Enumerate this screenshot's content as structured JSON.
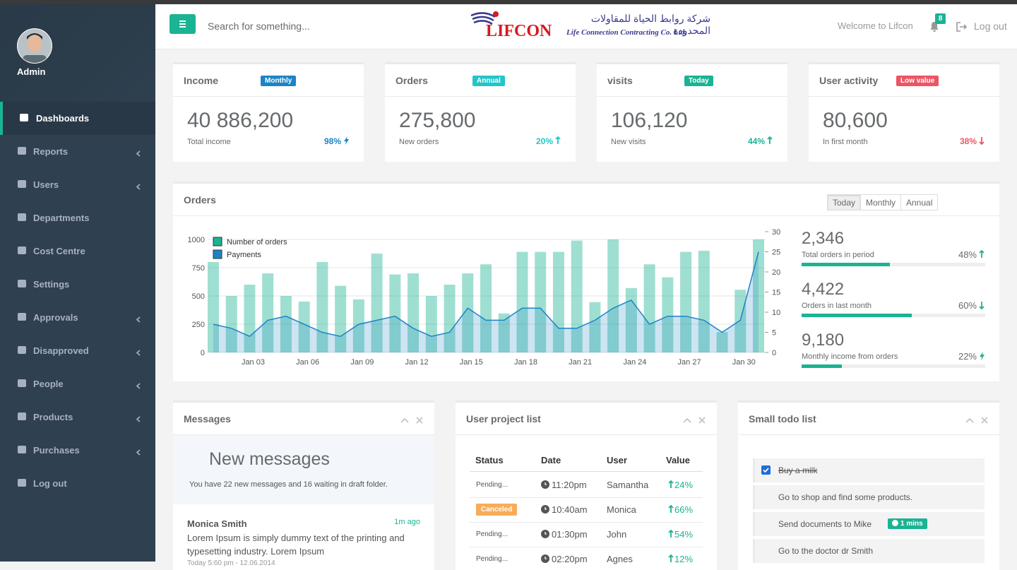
{
  "sidebar": {
    "user": "Admin",
    "menu": [
      {
        "label": "Dashboards",
        "active": true
      },
      {
        "label": "Reports",
        "submenu": true
      },
      {
        "label": "Users",
        "submenu": true
      },
      {
        "label": "Departments"
      },
      {
        "label": "Cost Centre"
      },
      {
        "label": "Settings"
      },
      {
        "label": "Approvals",
        "submenu": true
      },
      {
        "label": "Disapproved",
        "submenu": true
      },
      {
        "label": "People",
        "submenu": true
      },
      {
        "label": "Products",
        "submenu": true
      },
      {
        "label": "Purchases",
        "submenu": true
      },
      {
        "label": "Log out"
      }
    ]
  },
  "header": {
    "search_placeholder": "Search for something...",
    "logo": {
      "name": "LIFCON",
      "arabic": "شركة روابط الحياة للمقاولات المحدودة",
      "tagline": "Life Connection Contracting Co. Ltd."
    },
    "welcome": "Welcome to Lifcon",
    "notifications": 8,
    "logout": "Log out"
  },
  "stats": [
    {
      "title": "Income",
      "badge": "Monthly",
      "value": "40 886,200",
      "caption": "Total income",
      "change": "98%",
      "trend": "bolt",
      "color": "#1c84c6"
    },
    {
      "title": "Orders",
      "badge": "Annual",
      "value": "275,800",
      "caption": "New orders",
      "change": "20%",
      "trend": "up",
      "color": "#23c6c8"
    },
    {
      "title": "visits",
      "badge": "Today",
      "value": "106,120",
      "caption": "New visits",
      "change": "44%",
      "trend": "up",
      "color": "#1ab394"
    },
    {
      "title": "User activity",
      "badge": "Low value",
      "value": "80,600",
      "caption": "In first month",
      "change": "38%",
      "trend": "down",
      "color": "#ed5565"
    }
  ],
  "orders": {
    "title": "Orders",
    "periods": [
      "Today",
      "Monthly",
      "Annual"
    ],
    "active_period": 0,
    "summary": [
      {
        "value": "2,346",
        "caption": "Total orders in period",
        "percent": {
          "value": 48,
          "label": "48%"
        },
        "trend": "up"
      },
      {
        "value": "4,422",
        "caption": "Orders in last month",
        "percent": {
          "value": 60,
          "label": "60%"
        },
        "trend": "down"
      },
      {
        "value": "9,180",
        "caption": "Monthly income from orders",
        "percent": {
          "value": 22,
          "label": "22%"
        },
        "trend": "bolt"
      }
    ]
  },
  "chart_data": {
    "type": "bar",
    "categories": [
      null,
      null,
      "Jan 03",
      null,
      null,
      "Jan 06",
      null,
      null,
      "Jan 09",
      null,
      null,
      "Jan 12",
      null,
      null,
      "Jan 15",
      null,
      null,
      "Jan 18",
      null,
      null,
      "Jan 21",
      null,
      null,
      "Jan 24",
      null,
      null,
      "Jan 27",
      null,
      null,
      "Jan 30",
      null
    ],
    "series": [
      {
        "name": "Number of orders",
        "color": "#1ab394",
        "type": "bar",
        "values": [
          800,
          500,
          600,
          700,
          500,
          450,
          800,
          590,
          470,
          875,
          690,
          700,
          500,
          600,
          700,
          780,
          345,
          890,
          890,
          890,
          990,
          445,
          1000,
          570,
          780,
          665,
          890,
          900,
          180,
          555,
          1000
        ]
      },
      {
        "name": "Payments",
        "color": "#1c84c6",
        "type": "line",
        "axis": "y2",
        "values": [
          7,
          6,
          4,
          8,
          9,
          7,
          5,
          4,
          7,
          8,
          9,
          6,
          4,
          5,
          11,
          8,
          8,
          11,
          11,
          6,
          6,
          8,
          11,
          13,
          7,
          9,
          9,
          8,
          5,
          8,
          25
        ]
      }
    ],
    "ylim": [
      0,
      1000
    ],
    "yticks": [
      0,
      250,
      500,
      750,
      1000
    ],
    "y2lim": [
      0,
      30
    ],
    "y2ticks": [
      0,
      5,
      10,
      15,
      20,
      25,
      30
    ],
    "grid": true,
    "legend": "top-left"
  },
  "messages": {
    "title": "Messages",
    "heading": "New messages",
    "summary": "You have 22 new messages and 16 waiting in draft folder.",
    "items": [
      {
        "from": "Monica Smith",
        "time": "1m ago",
        "text": "Lorem Ipsum is simply dummy text of the printing and typesetting industry. Lorem Ipsum",
        "date": "Today 5:60 pm - 12.06.2014"
      }
    ]
  },
  "projects": {
    "title": "User project list",
    "columns": [
      "Status",
      "Date",
      "User",
      "Value"
    ],
    "rows": [
      {
        "status": "Pending...",
        "date": "11:20pm",
        "user": "Samantha",
        "value": "24%"
      },
      {
        "status": "Canceled",
        "badge": true,
        "date": "10:40am",
        "user": "Monica",
        "value": "66%"
      },
      {
        "status": "Pending...",
        "date": "01:30pm",
        "user": "John",
        "value": "54%"
      },
      {
        "status": "Pending...",
        "date": "02:20pm",
        "user": "Agnes",
        "value": "12%"
      }
    ]
  },
  "todo": {
    "title": "Small todo list",
    "items": [
      {
        "text": "Buy a milk",
        "done": true
      },
      {
        "text": "Go to shop and find some products.",
        "done": false
      },
      {
        "text": "Send documents to Mike",
        "done": false,
        "badge": "1 mins"
      },
      {
        "text": "Go to the doctor dr Smith",
        "done": false
      }
    ]
  }
}
